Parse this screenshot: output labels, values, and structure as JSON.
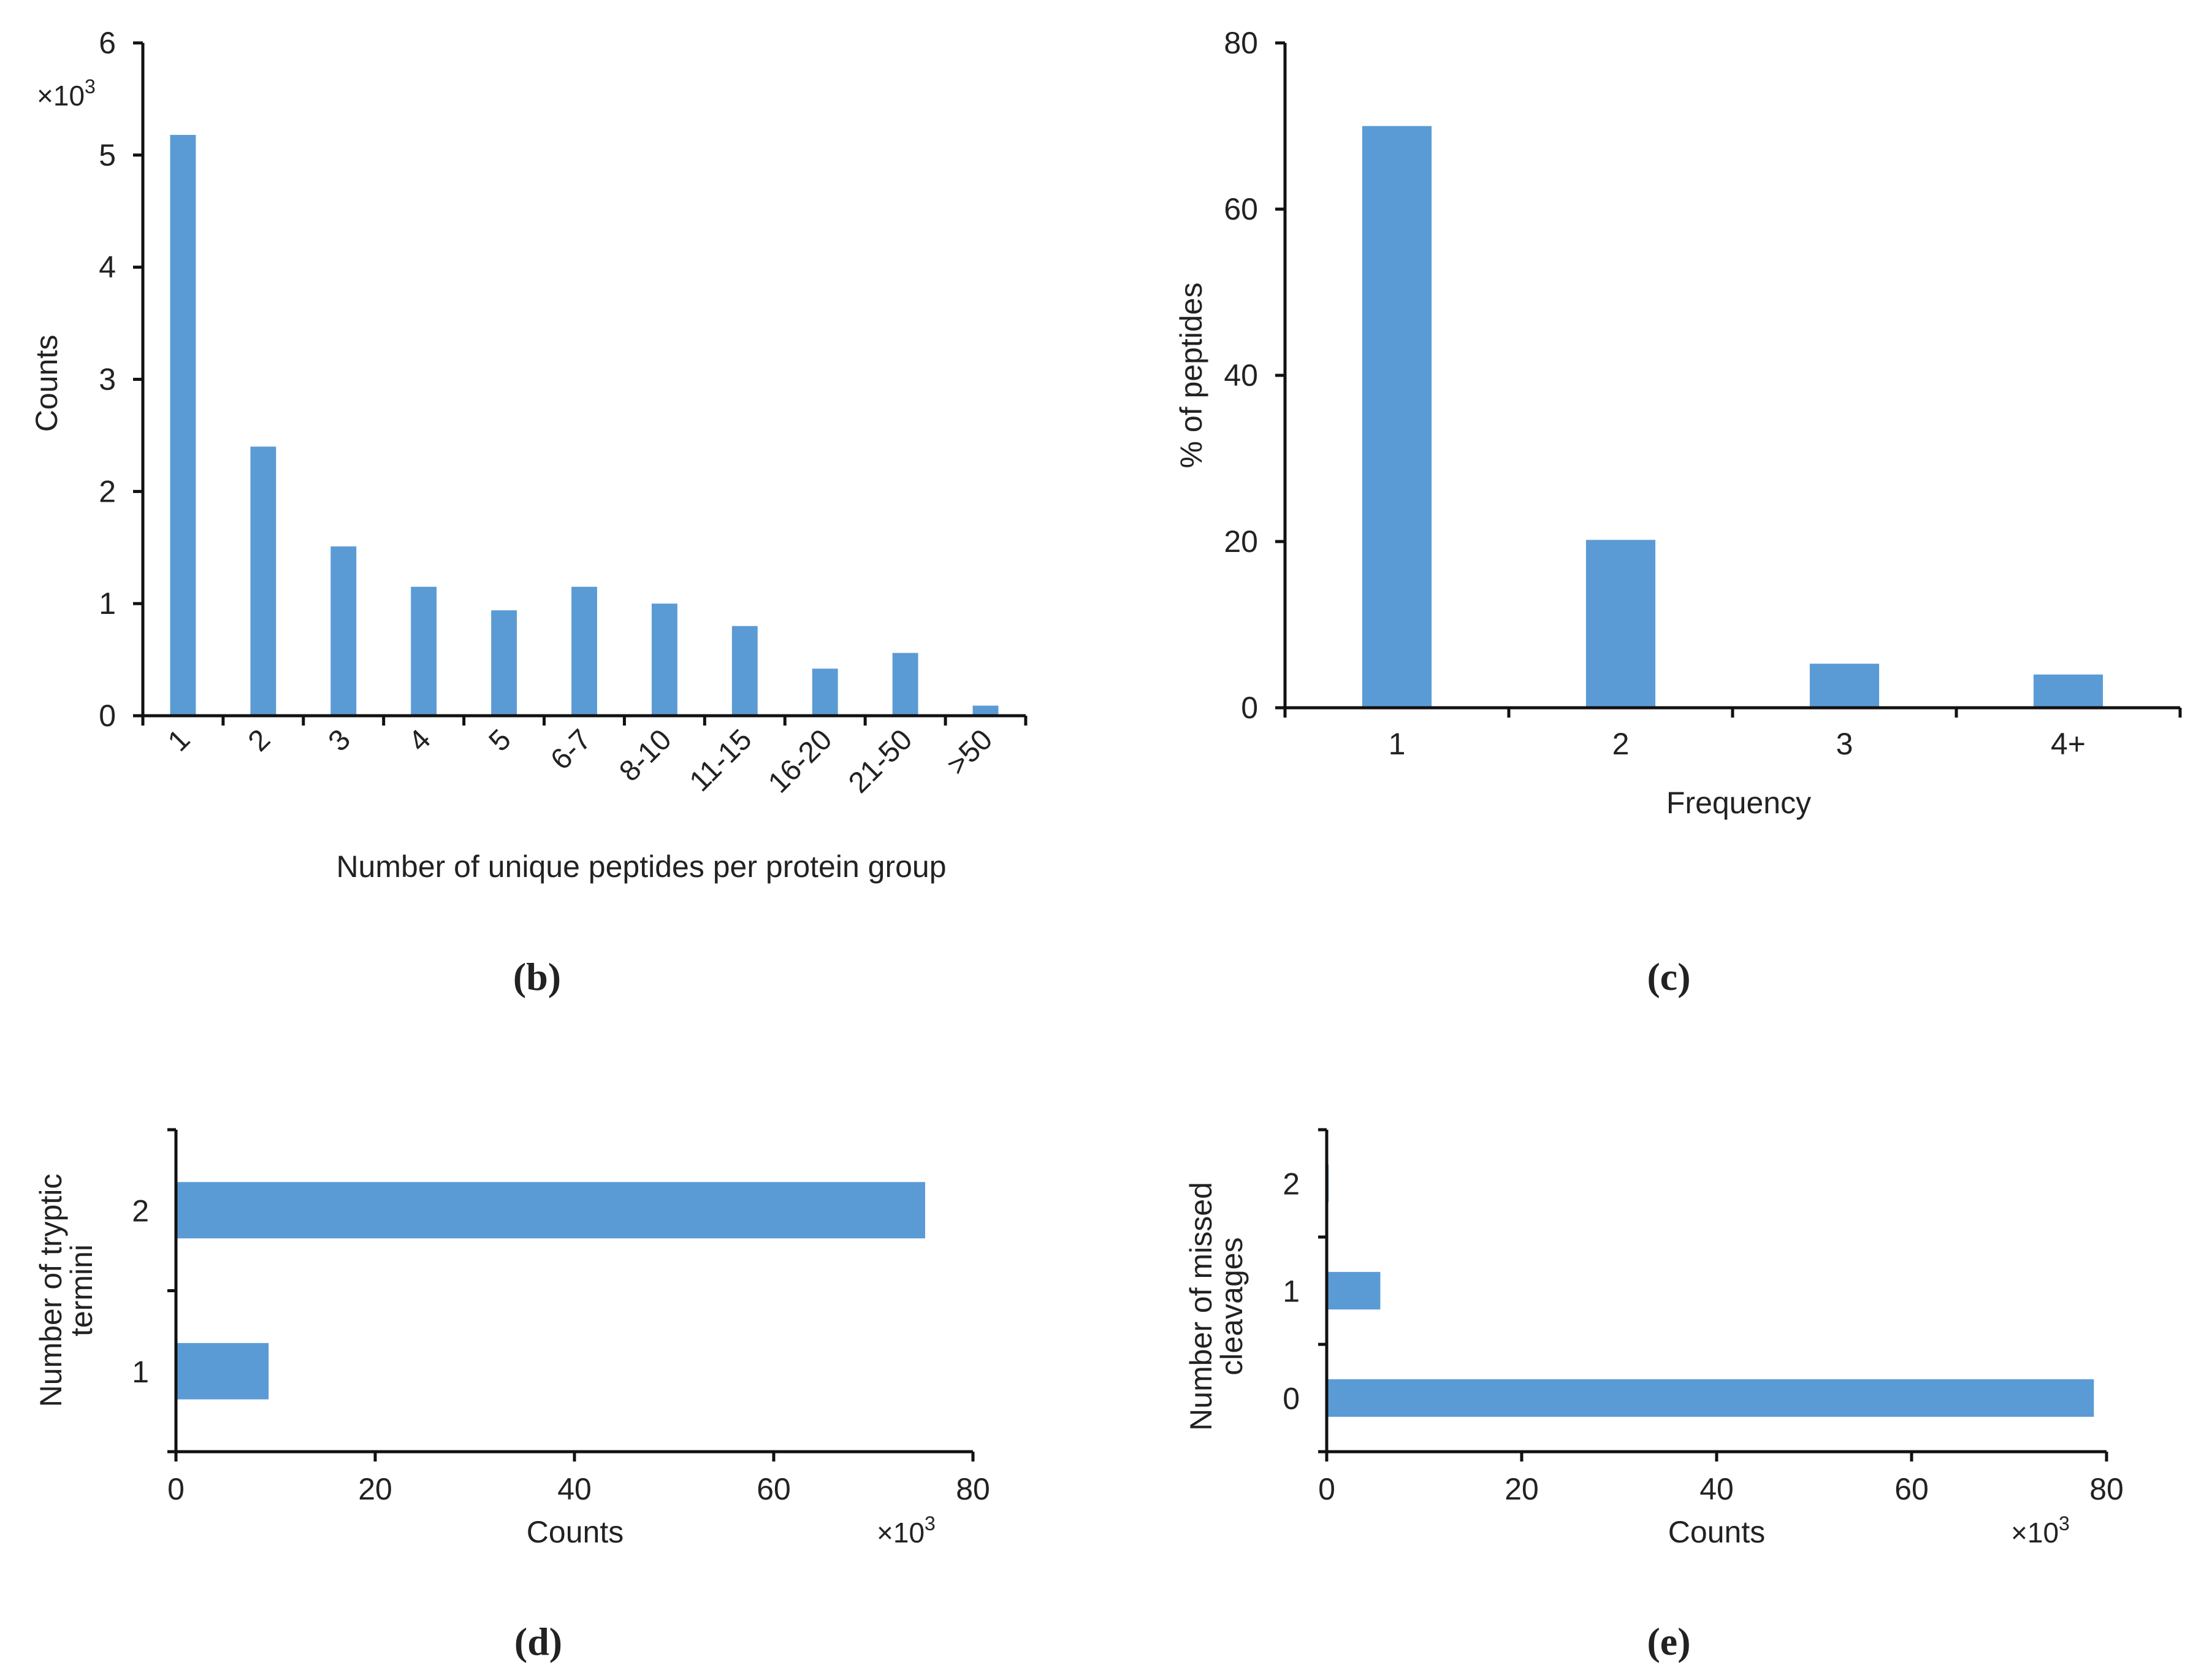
{
  "chart_data": [
    {
      "panel": "b",
      "type": "bar",
      "orientation": "vertical",
      "categories": [
        "1",
        "2",
        "3",
        "4",
        "5",
        "6-7",
        "8-10",
        "11-15",
        "16-20",
        "21-50",
        ">50"
      ],
      "values": [
        5.18,
        2.4,
        1.51,
        1.15,
        0.94,
        1.15,
        1.0,
        0.8,
        0.42,
        0.56,
        0.09
      ],
      "xlabel": "Number of unique peptides per protein group",
      "ylabel": "Counts",
      "multiplier_base": "×10",
      "multiplier_exp": "3",
      "ylim": [
        0,
        6
      ],
      "yticks": [
        "0",
        "1",
        "2",
        "3",
        "4",
        "5",
        "6"
      ],
      "color": "#5b9bd5"
    },
    {
      "panel": "c",
      "type": "bar",
      "orientation": "vertical",
      "categories": [
        "1",
        "2",
        "3",
        "4+"
      ],
      "values": [
        70,
        20.2,
        5.3,
        4.0
      ],
      "xlabel": "Frequency",
      "ylabel": "% of peptides",
      "ylim": [
        0,
        80
      ],
      "yticks": [
        "0",
        "20",
        "40",
        "60",
        "80"
      ],
      "color": "#5b9bd5"
    },
    {
      "panel": "d",
      "type": "bar",
      "orientation": "horizontal",
      "categories": [
        "1",
        "2"
      ],
      "values": [
        9.3,
        75.2
      ],
      "xlabel": "Counts",
      "ylabel_lines": [
        "Number of tryptic",
        "termini"
      ],
      "multiplier_base": "×10",
      "multiplier_exp": "3",
      "xlim": [
        0,
        80
      ],
      "xticks": [
        "0",
        "20",
        "40",
        "60",
        "80"
      ],
      "color": "#5b9bd5"
    },
    {
      "panel": "e",
      "type": "bar",
      "orientation": "horizontal",
      "categories": [
        "0",
        "1",
        "2"
      ],
      "values": [
        78.7,
        5.5,
        0.2
      ],
      "xlabel": "Counts",
      "ylabel_lines": [
        "Number of missed",
        "cleavages"
      ],
      "multiplier_base": "×10",
      "multiplier_exp": "3",
      "xlim": [
        0,
        80
      ],
      "xticks": [
        "0",
        "20",
        "40",
        "60",
        "80"
      ],
      "color": "#5b9bd5"
    }
  ],
  "panel_labels": {
    "b": {
      "open": "(",
      "letter": "b",
      "close": ")"
    },
    "c": {
      "open": "(",
      "letter": "c",
      "close": ")"
    },
    "d": {
      "open": "(",
      "letter": "d",
      "close": ")"
    },
    "e": {
      "open": "(",
      "letter": "e",
      "close": ")"
    }
  }
}
